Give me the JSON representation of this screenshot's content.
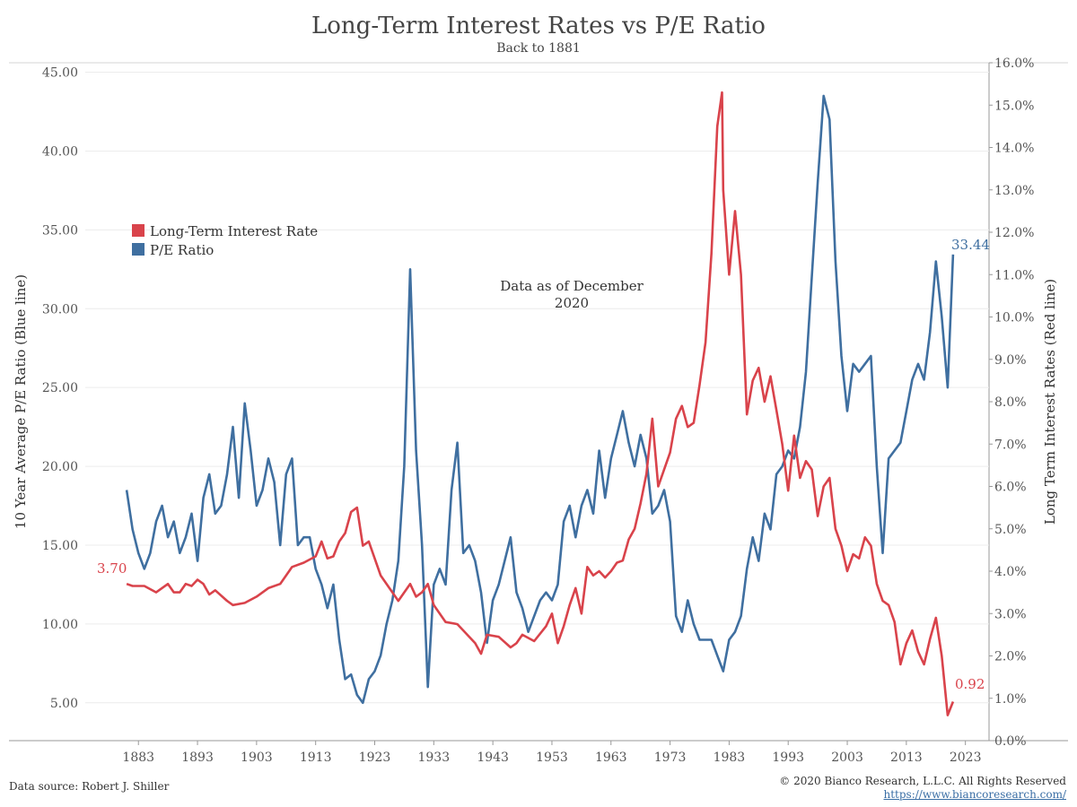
{
  "header": {
    "title": "Long-Term Interest Rates vs P/E Ratio",
    "subtitle": "Back to 1881"
  },
  "footer": {
    "source": "Data source: Robert J. Shiller",
    "copyright": "© 2020 Bianco Research, L.L.C. All Rights Reserved",
    "url": "https://www.biancoresearch.com/"
  },
  "colors": {
    "rate": "#d9434b",
    "pe": "#3f6fa0",
    "grid": "#ececec",
    "axis": "#999999",
    "text": "#555555"
  },
  "chart_data": {
    "type": "line",
    "title": "Long-Term Interest Rates vs P/E Ratio",
    "subtitle": "Back to 1881",
    "annotation": "Data as of December 2020",
    "xlabel": "",
    "ylabel_left": "10 Year Average P/E Ratio (Blue line)",
    "ylabel_right": "Long Term Interest Rates (Red line)",
    "xlim": [
      1874,
      2027
    ],
    "x_ticks": [
      1883,
      1893,
      1903,
      1913,
      1923,
      1933,
      1943,
      1953,
      1963,
      1973,
      1983,
      1993,
      2003,
      2013,
      2023
    ],
    "ylim_left": [
      2.6,
      45.6
    ],
    "y_ticks_left": [
      "5.00",
      "10.00",
      "15.00",
      "20.00",
      "25.00",
      "30.00",
      "35.00",
      "40.00",
      "45.00"
    ],
    "ylim_right": [
      0,
      16
    ],
    "y_ticks_right": [
      "0.0%",
      "1.0%",
      "2.0%",
      "3.0%",
      "4.0%",
      "5.0%",
      "6.0%",
      "7.0%",
      "8.0%",
      "9.0%",
      "10.0%",
      "11.0%",
      "12.0%",
      "13.0%",
      "14.0%",
      "15.0%",
      "16.0%"
    ],
    "grid": true,
    "legend_position": "upper-left",
    "series": [
      {
        "name": "Long-Term Interest Rate",
        "axis": "right",
        "color": "#d9434b",
        "start_label": "3.70",
        "end_label": "0.92",
        "points": [
          [
            1881,
            3.7
          ],
          [
            1882,
            3.65
          ],
          [
            1884,
            3.65
          ],
          [
            1886,
            3.5
          ],
          [
            1888,
            3.7
          ],
          [
            1889,
            3.5
          ],
          [
            1890,
            3.5
          ],
          [
            1891,
            3.7
          ],
          [
            1892,
            3.65
          ],
          [
            1893,
            3.8
          ],
          [
            1894,
            3.7
          ],
          [
            1895,
            3.45
          ],
          [
            1896,
            3.55
          ],
          [
            1898,
            3.3
          ],
          [
            1899,
            3.2
          ],
          [
            1901,
            3.25
          ],
          [
            1903,
            3.4
          ],
          [
            1905,
            3.6
          ],
          [
            1907,
            3.7
          ],
          [
            1909,
            4.1
          ],
          [
            1911,
            4.2
          ],
          [
            1913,
            4.35
          ],
          [
            1914,
            4.7
          ],
          [
            1915,
            4.3
          ],
          [
            1916,
            4.35
          ],
          [
            1917,
            4.7
          ],
          [
            1918,
            4.9
          ],
          [
            1919,
            5.4
          ],
          [
            1920,
            5.5
          ],
          [
            1921,
            4.6
          ],
          [
            1922,
            4.7
          ],
          [
            1923,
            4.3
          ],
          [
            1924,
            3.9
          ],
          [
            1926,
            3.5
          ],
          [
            1927,
            3.3
          ],
          [
            1929,
            3.7
          ],
          [
            1930,
            3.4
          ],
          [
            1931,
            3.5
          ],
          [
            1932,
            3.7
          ],
          [
            1933,
            3.2
          ],
          [
            1935,
            2.8
          ],
          [
            1937,
            2.75
          ],
          [
            1938,
            2.6
          ],
          [
            1940,
            2.3
          ],
          [
            1941,
            2.05
          ],
          [
            1942,
            2.5
          ],
          [
            1944,
            2.45
          ],
          [
            1946,
            2.2
          ],
          [
            1947,
            2.3
          ],
          [
            1948,
            2.5
          ],
          [
            1950,
            2.35
          ],
          [
            1952,
            2.7
          ],
          [
            1953,
            3.0
          ],
          [
            1954,
            2.3
          ],
          [
            1955,
            2.7
          ],
          [
            1956,
            3.2
          ],
          [
            1957,
            3.6
          ],
          [
            1958,
            3.0
          ],
          [
            1959,
            4.1
          ],
          [
            1960,
            3.9
          ],
          [
            1961,
            4.0
          ],
          [
            1962,
            3.85
          ],
          [
            1963,
            4.0
          ],
          [
            1964,
            4.2
          ],
          [
            1965,
            4.25
          ],
          [
            1966,
            4.75
          ],
          [
            1967,
            5.0
          ],
          [
            1968,
            5.6
          ],
          [
            1969,
            6.3
          ],
          [
            1970,
            7.6
          ],
          [
            1971,
            6.0
          ],
          [
            1972,
            6.4
          ],
          [
            1973,
            6.8
          ],
          [
            1974,
            7.6
          ],
          [
            1975,
            7.9
          ],
          [
            1976,
            7.4
          ],
          [
            1977,
            7.5
          ],
          [
            1978,
            8.4
          ],
          [
            1979,
            9.4
          ],
          [
            1980,
            11.5
          ],
          [
            1981,
            14.5
          ],
          [
            1981.8,
            15.3
          ],
          [
            1982,
            13.0
          ],
          [
            1983,
            11.0
          ],
          [
            1984,
            12.5
          ],
          [
            1985,
            11.0
          ],
          [
            1986,
            7.7
          ],
          [
            1987,
            8.5
          ],
          [
            1988,
            8.8
          ],
          [
            1989,
            8.0
          ],
          [
            1990,
            8.6
          ],
          [
            1991,
            7.8
          ],
          [
            1992,
            7.0
          ],
          [
            1993,
            5.9
          ],
          [
            1994,
            7.2
          ],
          [
            1995,
            6.2
          ],
          [
            1996,
            6.6
          ],
          [
            1997,
            6.4
          ],
          [
            1998,
            5.3
          ],
          [
            1999,
            6.0
          ],
          [
            2000,
            6.2
          ],
          [
            2001,
            5.0
          ],
          [
            2002,
            4.6
          ],
          [
            2003,
            4.0
          ],
          [
            2004,
            4.4
          ],
          [
            2005,
            4.3
          ],
          [
            2006,
            4.8
          ],
          [
            2007,
            4.6
          ],
          [
            2008,
            3.7
          ],
          [
            2009,
            3.3
          ],
          [
            2010,
            3.2
          ],
          [
            2011,
            2.8
          ],
          [
            2012,
            1.8
          ],
          [
            2013,
            2.3
          ],
          [
            2014,
            2.6
          ],
          [
            2015,
            2.1
          ],
          [
            2016,
            1.8
          ],
          [
            2017,
            2.4
          ],
          [
            2018,
            2.9
          ],
          [
            2019,
            2.0
          ],
          [
            2020,
            0.6
          ],
          [
            2020.9,
            0.92
          ]
        ]
      },
      {
        "name": "P/E Ratio",
        "axis": "left",
        "color": "#3f6fa0",
        "end_label": "33.44",
        "points": [
          [
            1881,
            18.5
          ],
          [
            1882,
            16.0
          ],
          [
            1883,
            14.5
          ],
          [
            1884,
            13.5
          ],
          [
            1885,
            14.5
          ],
          [
            1886,
            16.5
          ],
          [
            1887,
            17.5
          ],
          [
            1888,
            15.5
          ],
          [
            1889,
            16.5
          ],
          [
            1890,
            14.5
          ],
          [
            1891,
            15.5
          ],
          [
            1892,
            17.0
          ],
          [
            1893,
            14.0
          ],
          [
            1894,
            18.0
          ],
          [
            1895,
            19.5
          ],
          [
            1896,
            17.0
          ],
          [
            1897,
            17.5
          ],
          [
            1898,
            19.5
          ],
          [
            1899,
            22.5
          ],
          [
            1900,
            18.0
          ],
          [
            1901,
            24.0
          ],
          [
            1902,
            21.0
          ],
          [
            1903,
            17.5
          ],
          [
            1904,
            18.5
          ],
          [
            1905,
            20.5
          ],
          [
            1906,
            19.0
          ],
          [
            1907,
            15.0
          ],
          [
            1908,
            19.5
          ],
          [
            1909,
            20.5
          ],
          [
            1910,
            15.0
          ],
          [
            1911,
            15.5
          ],
          [
            1912,
            15.5
          ],
          [
            1913,
            13.5
          ],
          [
            1914,
            12.5
          ],
          [
            1915,
            11.0
          ],
          [
            1916,
            12.5
          ],
          [
            1917,
            9.0
          ],
          [
            1918,
            6.5
          ],
          [
            1919,
            6.8
          ],
          [
            1920,
            5.5
          ],
          [
            1921,
            5.0
          ],
          [
            1922,
            6.5
          ],
          [
            1923,
            7.0
          ],
          [
            1924,
            8.0
          ],
          [
            1925,
            10.0
          ],
          [
            1926,
            11.5
          ],
          [
            1927,
            14.0
          ],
          [
            1928,
            20.0
          ],
          [
            1929,
            32.5
          ],
          [
            1930,
            21.0
          ],
          [
            1931,
            15.0
          ],
          [
            1932,
            6.0
          ],
          [
            1933,
            12.5
          ],
          [
            1934,
            13.5
          ],
          [
            1935,
            12.5
          ],
          [
            1936,
            18.5
          ],
          [
            1937,
            21.5
          ],
          [
            1938,
            14.5
          ],
          [
            1939,
            15.0
          ],
          [
            1940,
            14.0
          ],
          [
            1941,
            12.0
          ],
          [
            1942,
            8.8
          ],
          [
            1943,
            11.5
          ],
          [
            1944,
            12.5
          ],
          [
            1945,
            14.0
          ],
          [
            1946,
            15.5
          ],
          [
            1947,
            12.0
          ],
          [
            1948,
            11.0
          ],
          [
            1949,
            9.5
          ],
          [
            1950,
            10.5
          ],
          [
            1951,
            11.5
          ],
          [
            1952,
            12.0
          ],
          [
            1953,
            11.5
          ],
          [
            1954,
            12.5
          ],
          [
            1955,
            16.5
          ],
          [
            1956,
            17.5
          ],
          [
            1957,
            15.5
          ],
          [
            1958,
            17.5
          ],
          [
            1959,
            18.5
          ],
          [
            1960,
            17.0
          ],
          [
            1961,
            21.0
          ],
          [
            1962,
            18.0
          ],
          [
            1963,
            20.5
          ],
          [
            1964,
            22.0
          ],
          [
            1965,
            23.5
          ],
          [
            1966,
            21.5
          ],
          [
            1967,
            20.0
          ],
          [
            1968,
            22.0
          ],
          [
            1969,
            20.5
          ],
          [
            1970,
            17.0
          ],
          [
            1971,
            17.5
          ],
          [
            1972,
            18.5
          ],
          [
            1973,
            16.5
          ],
          [
            1974,
            10.5
          ],
          [
            1975,
            9.5
          ],
          [
            1976,
            11.5
          ],
          [
            1977,
            10.0
          ],
          [
            1978,
            9.0
          ],
          [
            1979,
            9.0
          ],
          [
            1980,
            9.0
          ],
          [
            1981,
            8.0
          ],
          [
            1982,
            7.0
          ],
          [
            1983,
            9.0
          ],
          [
            1984,
            9.5
          ],
          [
            1985,
            10.5
          ],
          [
            1986,
            13.5
          ],
          [
            1987,
            15.5
          ],
          [
            1988,
            14.0
          ],
          [
            1989,
            17.0
          ],
          [
            1990,
            16.0
          ],
          [
            1991,
            19.5
          ],
          [
            1992,
            20.0
          ],
          [
            1993,
            21.0
          ],
          [
            1994,
            20.5
          ],
          [
            1995,
            22.5
          ],
          [
            1996,
            26.0
          ],
          [
            1997,
            32.0
          ],
          [
            1998,
            38.0
          ],
          [
            1999,
            43.5
          ],
          [
            2000,
            42.0
          ],
          [
            2001,
            33.0
          ],
          [
            2002,
            27.0
          ],
          [
            2003,
            23.5
          ],
          [
            2004,
            26.5
          ],
          [
            2005,
            26.0
          ],
          [
            2006,
            26.5
          ],
          [
            2007,
            27.0
          ],
          [
            2008,
            20.0
          ],
          [
            2009,
            14.5
          ],
          [
            2010,
            20.5
          ],
          [
            2011,
            21.0
          ],
          [
            2012,
            21.5
          ],
          [
            2013,
            23.5
          ],
          [
            2014,
            25.5
          ],
          [
            2015,
            26.5
          ],
          [
            2016,
            25.5
          ],
          [
            2017,
            28.5
          ],
          [
            2018,
            33.0
          ],
          [
            2019,
            29.5
          ],
          [
            2020,
            25.0
          ],
          [
            2020.9,
            33.44
          ]
        ]
      }
    ]
  }
}
